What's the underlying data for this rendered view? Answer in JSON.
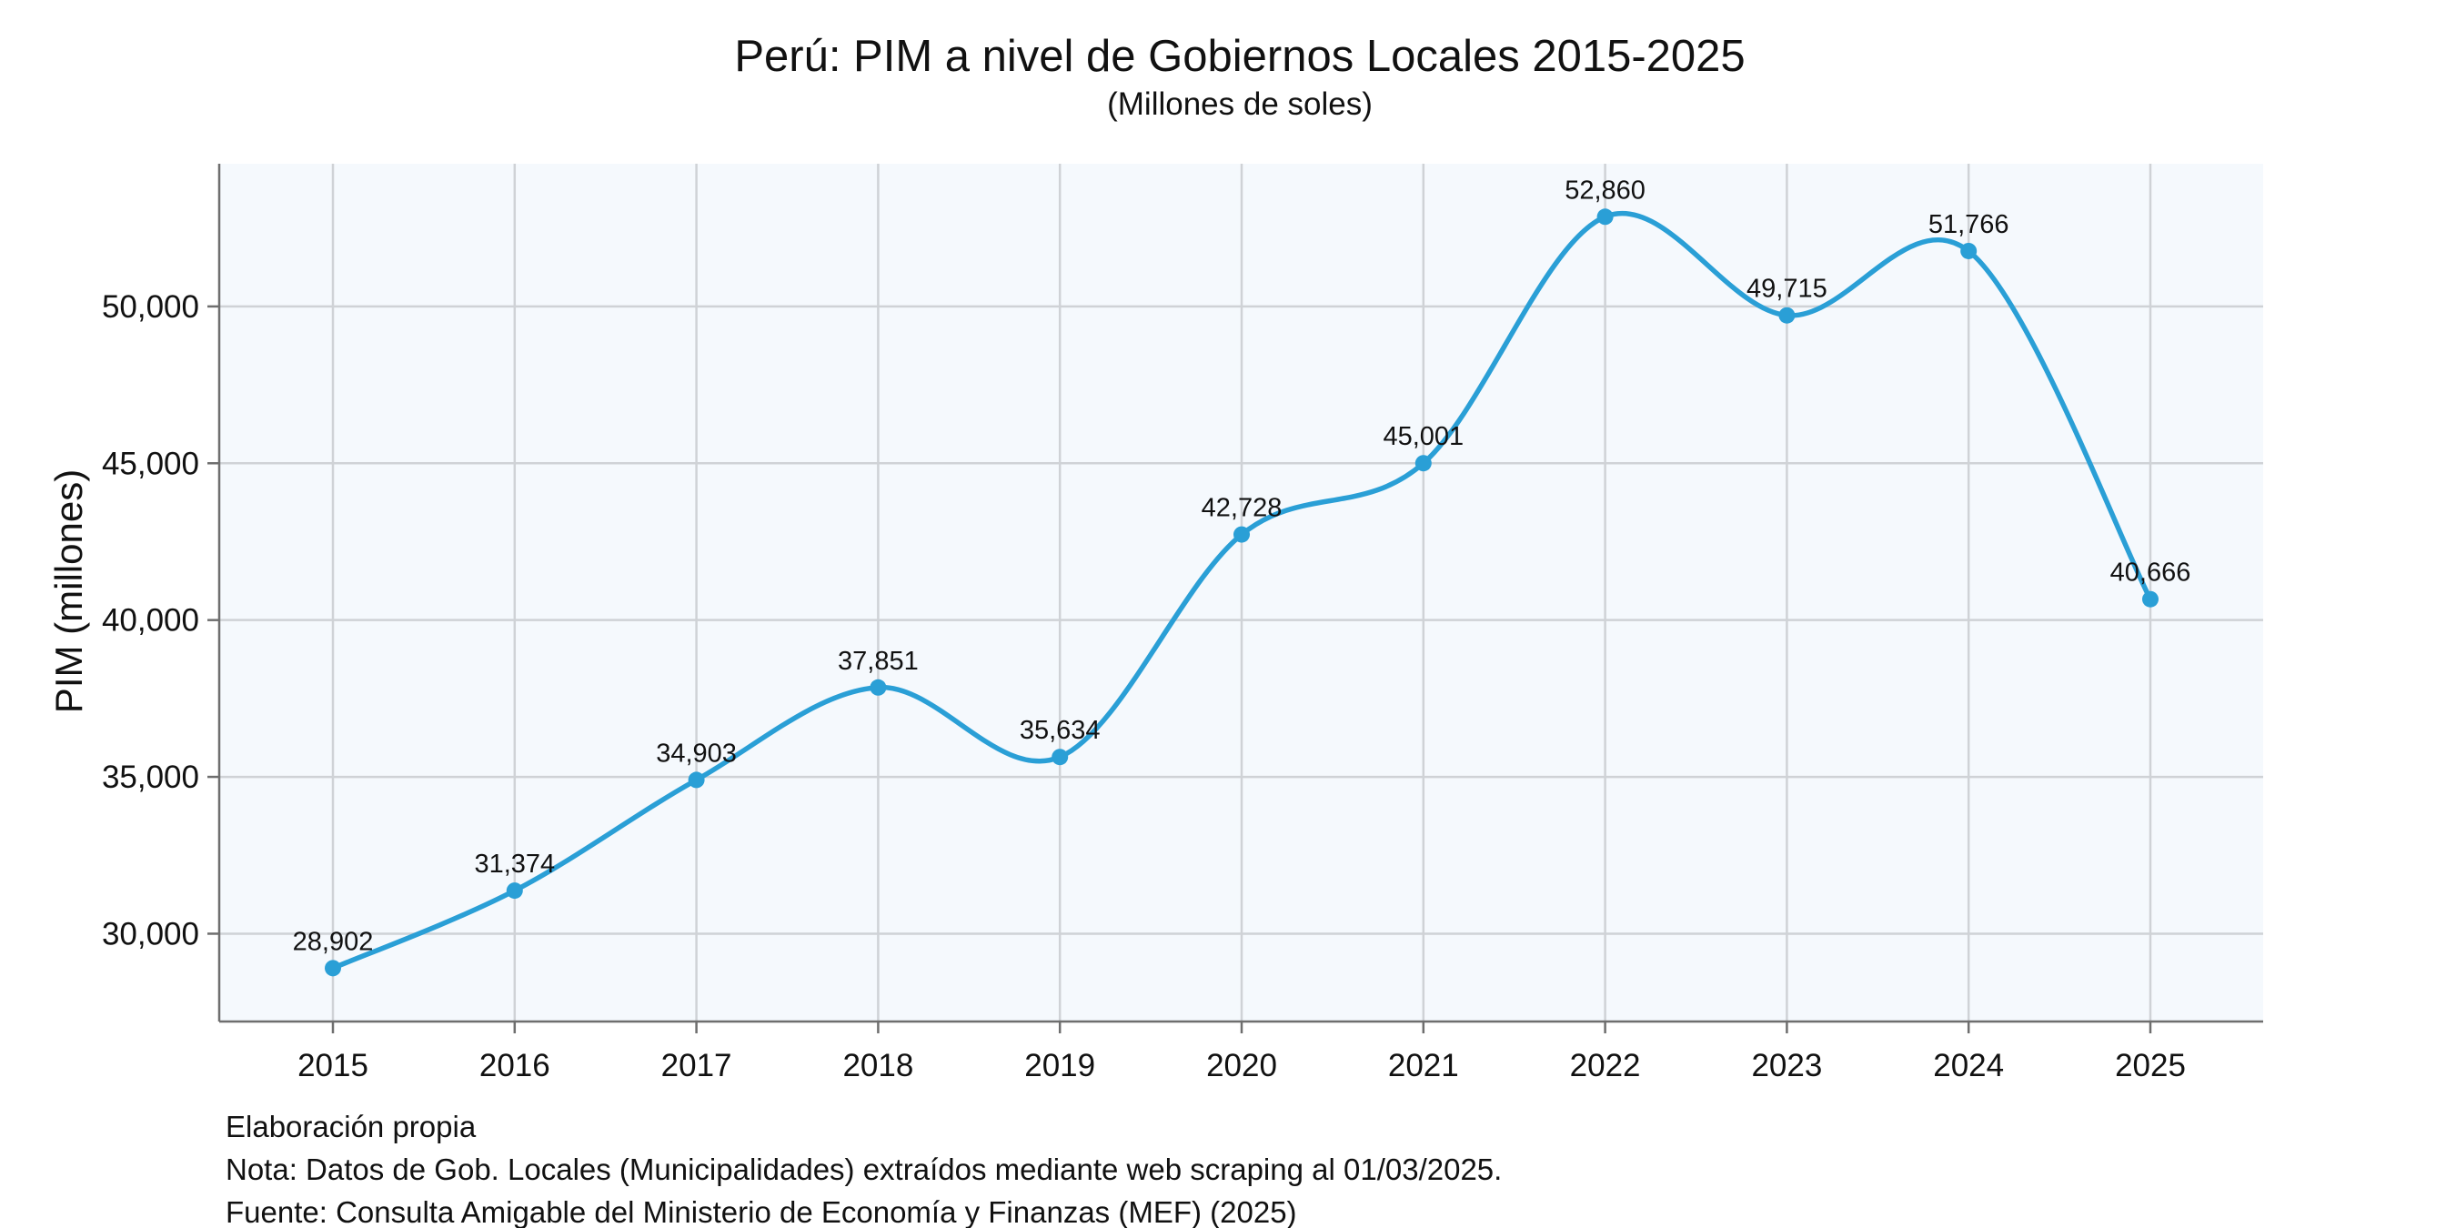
{
  "chart_data": {
    "type": "line",
    "title": "Perú: PIM a nivel de Gobiernos Locales 2015-2025",
    "subtitle": "(Millones de soles)",
    "xlabel": "",
    "ylabel": "PIM (millones)",
    "x": [
      "2015",
      "2016",
      "2017",
      "2018",
      "2019",
      "2020",
      "2021",
      "2022",
      "2023",
      "2024",
      "2025"
    ],
    "series": [
      {
        "values": [
          28902,
          31374,
          34903,
          37851,
          35634,
          42728,
          45001,
          52860,
          49715,
          51766,
          40666
        ],
        "labels": [
          "28,902",
          "31,374",
          "34,903",
          "37,851",
          "35,634",
          "42,728",
          "45,001",
          "52,860",
          "49,715",
          "51,766",
          "40,666"
        ],
        "color": "#2a9fd6"
      }
    ],
    "yticks": [
      {
        "value": 30000,
        "label": "30,000"
      },
      {
        "value": 35000,
        "label": "35,000"
      },
      {
        "value": 40000,
        "label": "40,000"
      },
      {
        "value": 45000,
        "label": "45,000"
      },
      {
        "value": 50000,
        "label": "50,000"
      }
    ],
    "ylim": [
      27200,
      54550
    ],
    "grid": true,
    "smoothed": true,
    "plot_background": "#f5f9fd",
    "notes": [
      "Elaboración propia",
      "Nota: Datos de Gob. Locales (Municipalidades) extraídos mediante web scraping al 01/03/2025.",
      "Fuente: Consulta Amigable del Ministerio de Economía y Finanzas (MEF) (2025)"
    ]
  }
}
